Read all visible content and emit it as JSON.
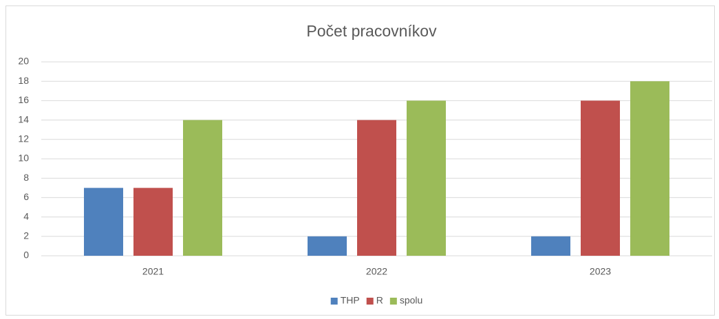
{
  "chart_data": {
    "type": "bar",
    "title": "Počet pracovníkov",
    "categories": [
      "2021",
      "2022",
      "2023"
    ],
    "series": [
      {
        "name": "THP",
        "color": "#4f81bd",
        "values": [
          7,
          2,
          2
        ]
      },
      {
        "name": "R",
        "color": "#c0504d",
        "values": [
          7,
          14,
          16
        ]
      },
      {
        "name": "spolu",
        "color": "#9bbb59",
        "values": [
          14,
          16,
          18
        ]
      }
    ],
    "ylim": [
      0,
      20
    ],
    "yticks": [
      0,
      2,
      4,
      6,
      8,
      10,
      12,
      14,
      16,
      18,
      20
    ],
    "grid": true,
    "legend": "bottom"
  }
}
